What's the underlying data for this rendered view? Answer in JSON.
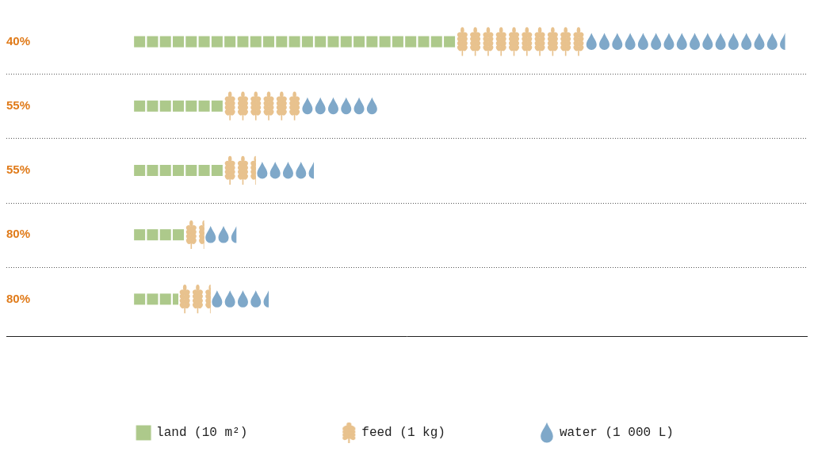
{
  "chart_data": {
    "type": "bar",
    "orientation": "horizontal",
    "stacked": true,
    "categories": [
      "40%",
      "55%",
      "55%",
      "80%",
      "80%"
    ],
    "series": [
      {
        "name": "land (10 m²)",
        "color": "#adc98b",
        "marker": "square",
        "values": [
          25,
          7,
          7,
          4,
          3.5
        ]
      },
      {
        "name": "feed (1 kg)",
        "color": "#e8c28e",
        "marker": "wheat",
        "values": [
          10,
          6,
          2.5,
          1.5,
          2.5
        ]
      },
      {
        "name": "water (1 000 L)",
        "color": "#7fa8c9",
        "marker": "drop",
        "values": [
          15.5,
          6,
          4.5,
          2.5,
          4.5
        ]
      }
    ],
    "xlim": [
      0,
      52
    ],
    "tick_labels": "y",
    "grid": true,
    "legend": "bottom"
  }
}
